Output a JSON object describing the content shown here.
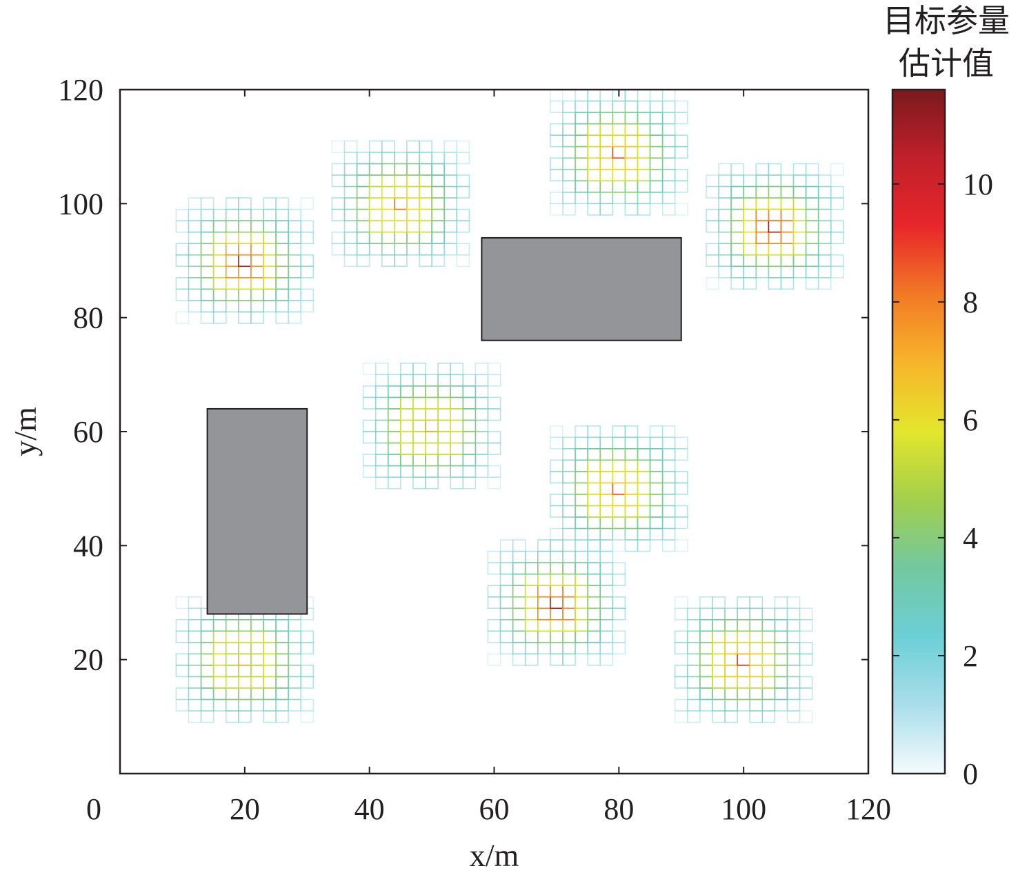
{
  "chart_data": {
    "type": "heatmap",
    "title": "",
    "xlabel": "x/m",
    "ylabel": "y/m",
    "xlim": [
      0,
      120
    ],
    "ylim": [
      0,
      120
    ],
    "xticks": [
      0,
      20,
      40,
      60,
      80,
      100,
      120
    ],
    "yticks": [
      20,
      40,
      60,
      80,
      100,
      120
    ],
    "grid": false,
    "colorbar": {
      "title_line1": "目标参量",
      "title_line2": "估计值",
      "range": [
        0,
        11.6
      ],
      "ticks": [
        0,
        2,
        4,
        6,
        8,
        10
      ],
      "colors": [
        "#f4fbfd",
        "#a9deea",
        "#6ccfd6",
        "#72c8a0",
        "#a2cf4c",
        "#e3e62c",
        "#f7b52a",
        "#f27a26",
        "#e8262a",
        "#c0202a",
        "#7a1a1c"
      ]
    },
    "obstacles": [
      {
        "x0": 14,
        "x1": 30,
        "y0": 28,
        "y1": 64,
        "color": "#939598"
      },
      {
        "x0": 58,
        "x1": 90,
        "y0": 76,
        "y1": 94,
        "color": "#939598"
      }
    ],
    "targets": [
      {
        "x": 20,
        "y": 90,
        "peak": 10.5
      },
      {
        "x": 45,
        "y": 100,
        "peak": 8.2
      },
      {
        "x": 80,
        "y": 109,
        "peak": 8.8
      },
      {
        "x": 105,
        "y": 96,
        "peak": 11.0
      },
      {
        "x": 50,
        "y": 61,
        "peak": 7.3
      },
      {
        "x": 80,
        "y": 50,
        "peak": 8.6
      },
      {
        "x": 70,
        "y": 30,
        "peak": 10.8
      },
      {
        "x": 20,
        "y": 20,
        "peak": 7.0
      },
      {
        "x": 100,
        "y": 20,
        "peak": 9.0
      }
    ],
    "cell_size": 2
  }
}
